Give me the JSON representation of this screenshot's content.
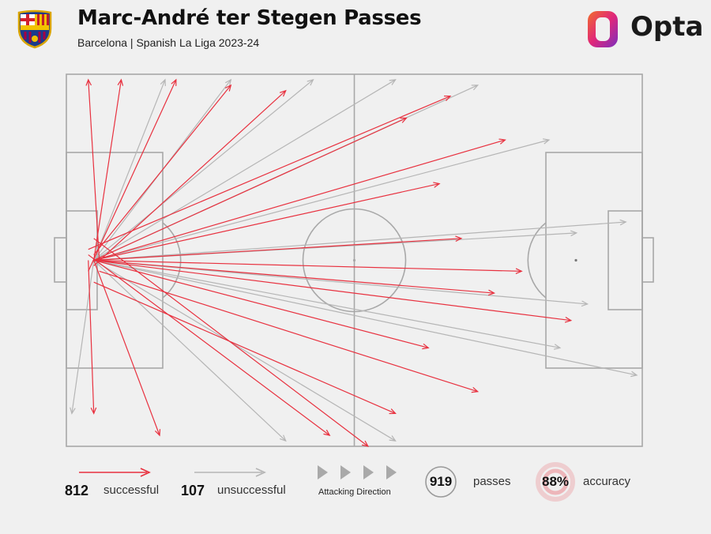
{
  "header": {
    "title": "Marc-André ter Stegen Passes",
    "subtitle": "Barcelona | Spanish La Liga 2023-24",
    "brand": "Opta"
  },
  "crest": {
    "letters": "FCB"
  },
  "colors": {
    "successful": "#e8313f",
    "unsuccessful": "#b5b5b5",
    "pitch_lines": "#a8a8a8",
    "background": "#f0f0f0"
  },
  "legend": {
    "successful_count": "812",
    "successful_label": "successful",
    "unsuccessful_count": "107",
    "unsuccessful_label": "unsuccessful",
    "direction_label": "Attacking Direction",
    "passes_count": "919",
    "passes_label": "passes",
    "accuracy_value": "88%",
    "accuracy_label": "accuracy"
  },
  "chart_data": {
    "type": "pass-map",
    "pitch": {
      "length": 105,
      "width": 68,
      "attacking_direction": "left-to-right"
    },
    "totals": {
      "passes": 919,
      "successful": 812,
      "unsuccessful": 107,
      "accuracy_pct": 88
    },
    "series": [
      {
        "name": "successful",
        "count": 812,
        "color": "#e8313f"
      },
      {
        "name": "unsuccessful",
        "count": 107,
        "color": "#b5b5b5"
      }
    ],
    "successful_passes": [
      [
        5,
        34,
        92,
        45
      ],
      [
        5,
        34,
        83,
        36
      ],
      [
        5,
        34,
        68,
        20
      ],
      [
        5,
        34,
        80,
        12
      ],
      [
        5,
        34,
        62,
        8
      ],
      [
        4,
        32,
        70,
        4
      ],
      [
        6,
        36,
        75,
        58
      ],
      [
        5,
        38,
        60,
        62
      ],
      [
        5,
        30,
        55,
        68
      ],
      [
        4,
        33,
        48,
        66
      ],
      [
        5,
        35,
        40,
        3
      ],
      [
        5,
        33,
        30,
        2
      ],
      [
        4,
        36,
        20,
        1
      ],
      [
        5,
        34,
        10,
        1
      ],
      [
        6,
        34,
        4,
        1
      ],
      [
        5,
        34,
        17,
        66
      ],
      [
        4,
        34,
        5,
        62
      ],
      [
        5,
        34,
        66,
        50
      ],
      [
        5,
        34,
        78,
        40
      ],
      [
        5,
        34,
        72,
        30
      ]
    ],
    "unsuccessful_passes": [
      [
        5,
        34,
        104,
        55
      ],
      [
        5,
        34,
        102,
        27
      ],
      [
        5,
        34,
        95,
        42
      ],
      [
        5,
        34,
        90,
        50
      ],
      [
        5,
        34,
        88,
        12
      ],
      [
        5,
        34,
        93,
        29
      ],
      [
        5,
        34,
        75,
        2
      ],
      [
        5,
        34,
        60,
        1
      ],
      [
        5,
        34,
        45,
        1
      ],
      [
        5,
        34,
        30,
        1
      ],
      [
        5,
        34,
        18,
        1
      ],
      [
        5,
        34,
        60,
        67
      ],
      [
        5,
        34,
        40,
        67
      ],
      [
        5,
        34,
        1,
        62
      ]
    ]
  }
}
